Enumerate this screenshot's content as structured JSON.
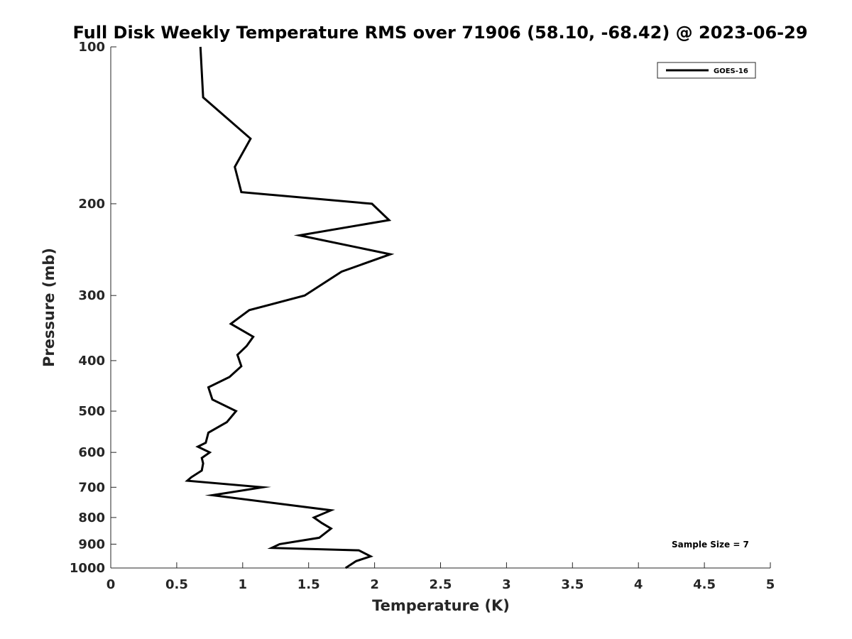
{
  "chart_data": {
    "type": "line",
    "title": "Full Disk Weekly Temperature RMS over 71906 (58.10, -68.42) @ 2023-06-29",
    "xlabel": "Temperature (K)",
    "ylabel": "Pressure (mb)",
    "xlim": [
      0,
      5
    ],
    "ylim": [
      100,
      1000
    ],
    "y_scale": "log",
    "y_reversed": true,
    "x_ticks": [
      "0",
      "0.5",
      "1",
      "1.5",
      "2",
      "2.5",
      "3",
      "3.5",
      "4",
      "4.5",
      "5"
    ],
    "y_ticks": [
      "100",
      "200",
      "300",
      "400",
      "500",
      "600",
      "700",
      "800",
      "900",
      "1000"
    ],
    "grid": false,
    "legend_position": "top-right",
    "series": [
      {
        "name": "GOES-16",
        "color": "#000000",
        "points": [
          [
            0.68,
            100
          ],
          [
            0.7,
            125
          ],
          [
            1.06,
            150
          ],
          [
            0.94,
            170
          ],
          [
            0.99,
            190
          ],
          [
            1.98,
            200
          ],
          [
            2.11,
            215
          ],
          [
            1.43,
            230
          ],
          [
            2.12,
            250
          ],
          [
            1.75,
            270
          ],
          [
            1.47,
            300
          ],
          [
            1.05,
            320
          ],
          [
            0.91,
            340
          ],
          [
            1.08,
            360
          ],
          [
            1.03,
            375
          ],
          [
            0.96,
            390
          ],
          [
            0.99,
            410
          ],
          [
            0.9,
            430
          ],
          [
            0.74,
            450
          ],
          [
            0.77,
            475
          ],
          [
            0.95,
            500
          ],
          [
            0.88,
            525
          ],
          [
            0.74,
            550
          ],
          [
            0.72,
            575
          ],
          [
            0.66,
            585
          ],
          [
            0.75,
            600
          ],
          [
            0.69,
            615
          ],
          [
            0.7,
            630
          ],
          [
            0.69,
            650
          ],
          [
            0.61,
            670
          ],
          [
            0.58,
            680
          ],
          [
            1.15,
            700
          ],
          [
            0.77,
            725
          ],
          [
            1.67,
            775
          ],
          [
            1.54,
            800
          ],
          [
            1.6,
            820
          ],
          [
            1.67,
            840
          ],
          [
            1.58,
            875
          ],
          [
            1.28,
            900
          ],
          [
            1.22,
            915
          ],
          [
            1.88,
            925
          ],
          [
            1.97,
            950
          ],
          [
            1.86,
            970
          ],
          [
            1.78,
            1000
          ]
        ]
      }
    ],
    "annotation": "Sample Size = 7"
  }
}
